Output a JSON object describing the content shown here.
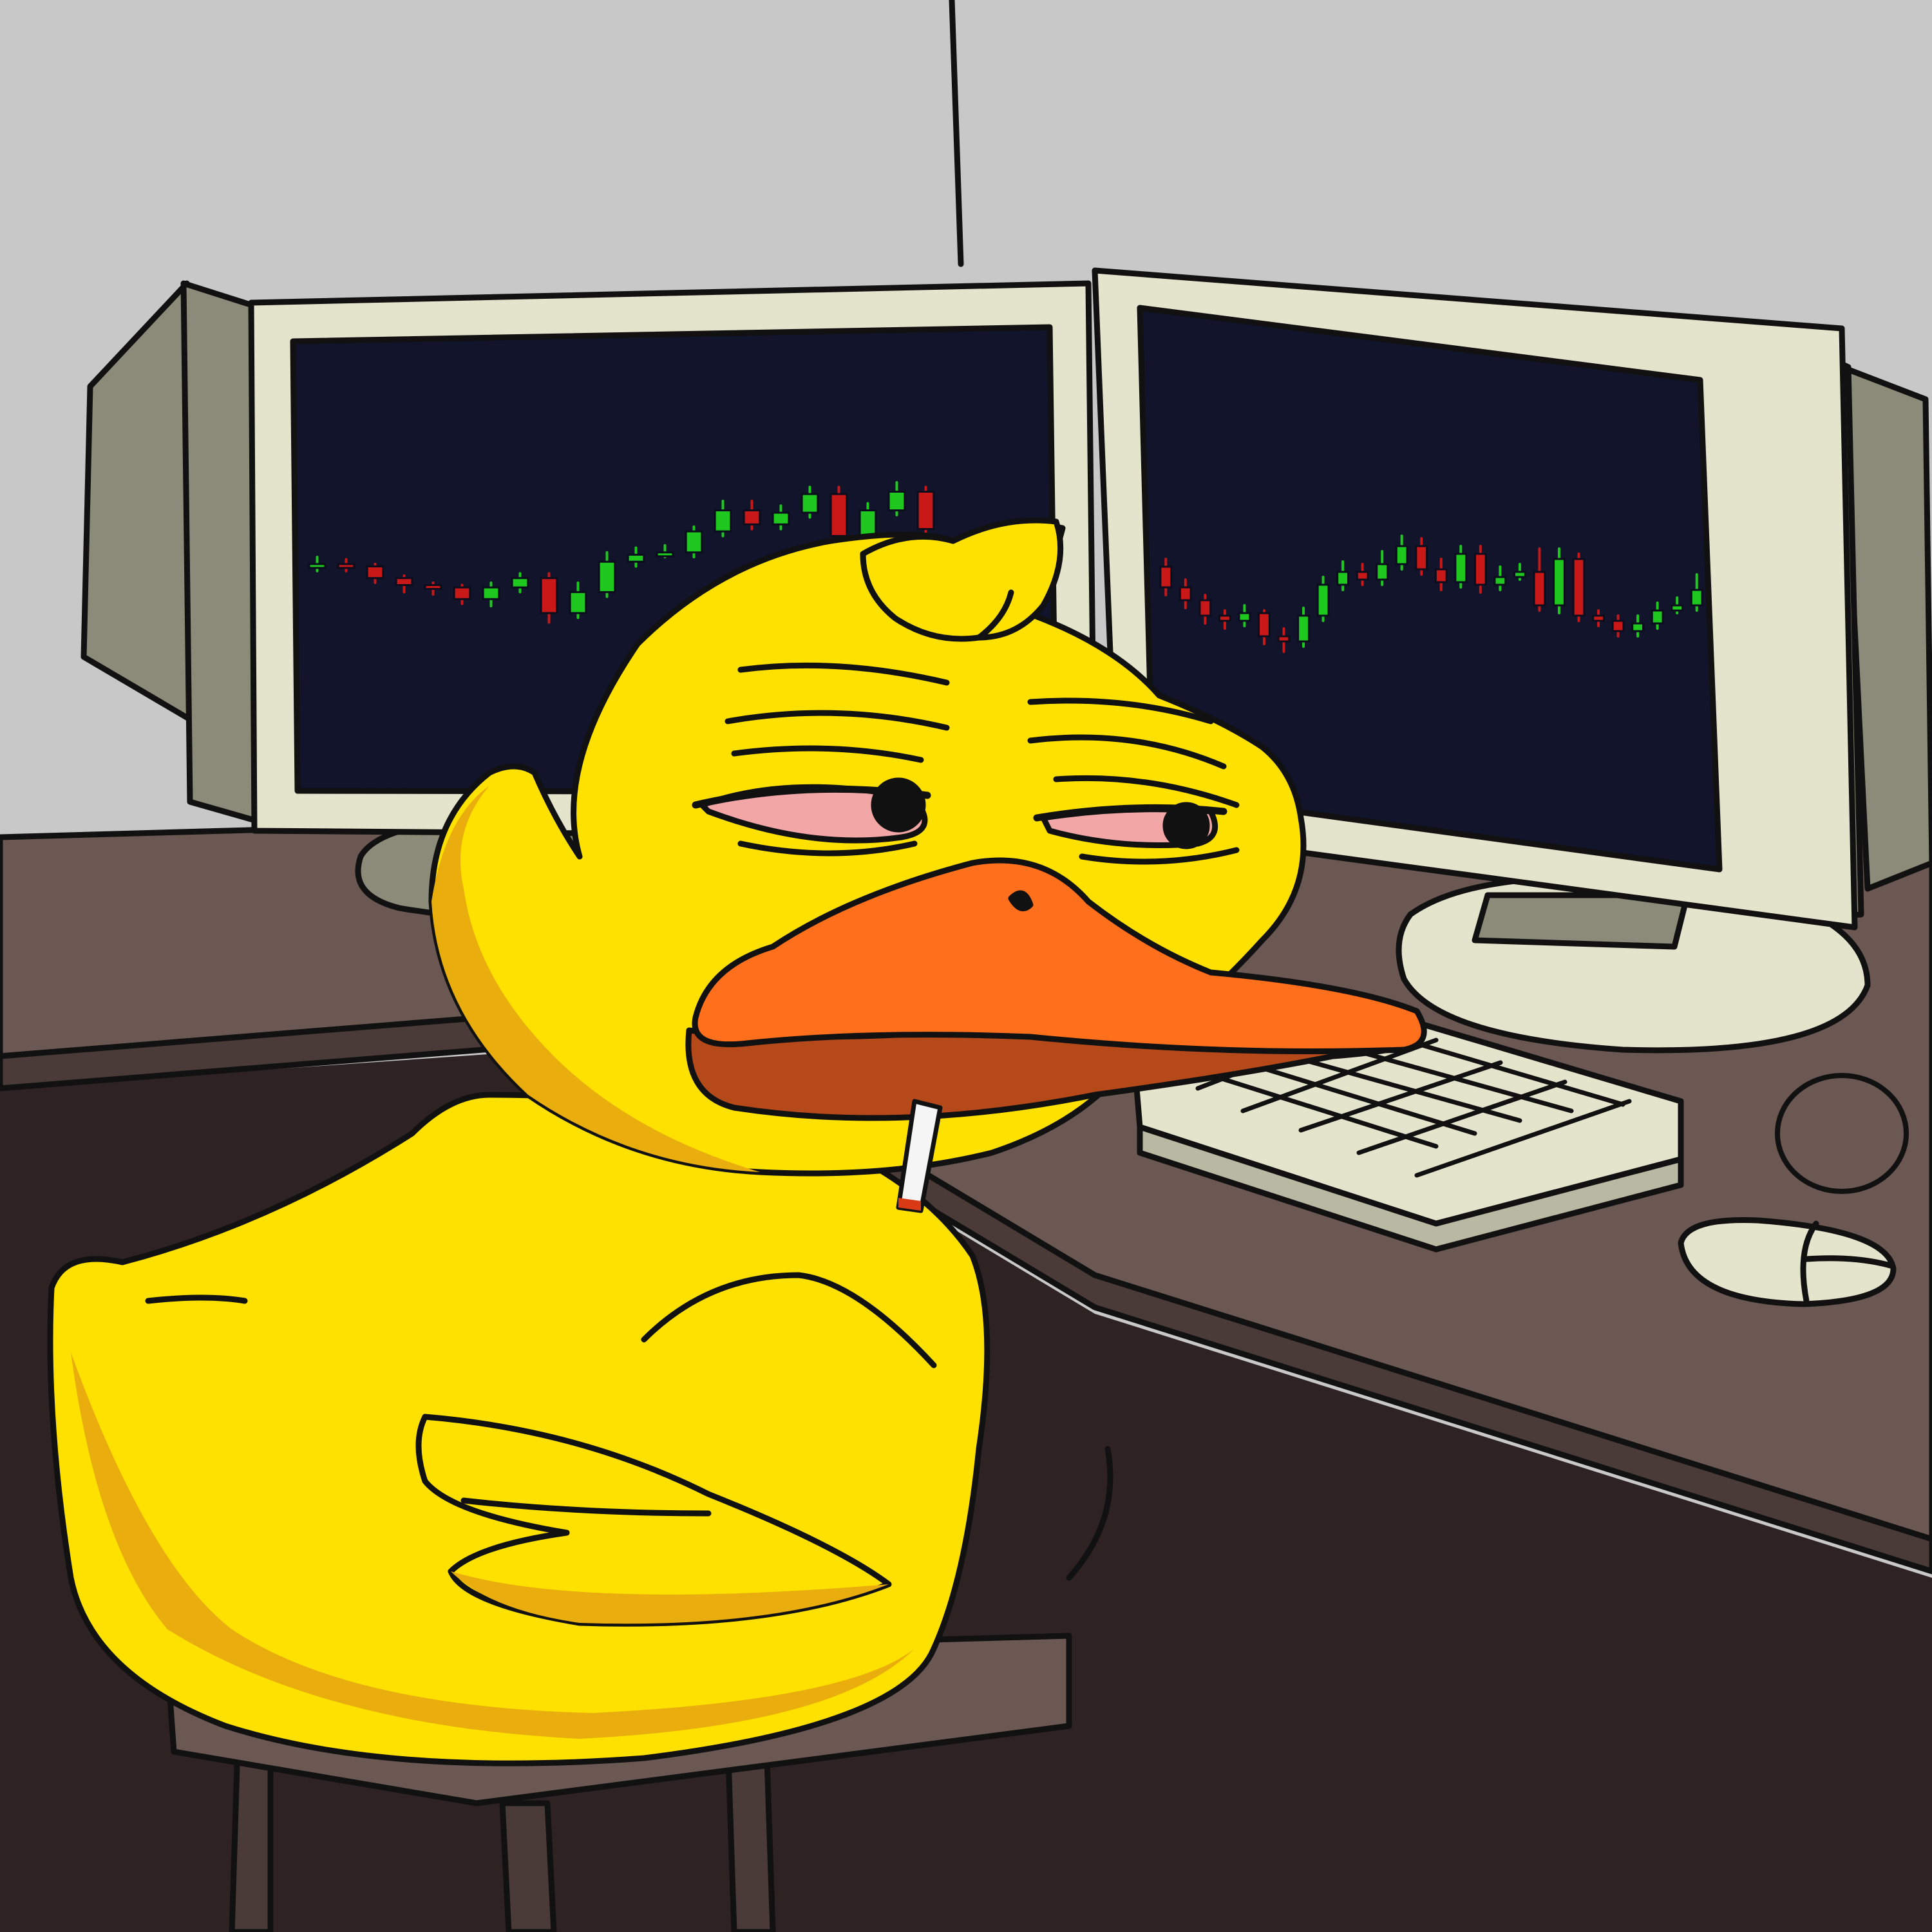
{
  "scene": {
    "subject": "duck-trader",
    "colors": {
      "wall": "#c8c8c8",
      "floor": "#7c8c54",
      "floor_light": "#9aab6e",
      "desk_top": "#6b5853",
      "desk_front": "#2e2322",
      "desk_edge": "#4a3b38",
      "monitor_frame": "#e4e3cb",
      "monitor_side": "#8a8b78",
      "screen": "#11142a",
      "candle_up": "#1ec81e",
      "candle_down": "#c81818",
      "duck_body": "#ffe100",
      "duck_shade": "#e9ad0e",
      "beak": "#ff6f1c",
      "beak_shade": "#b5491a",
      "eye_red": "#f2a6a6",
      "keyboard": "#e4e3cb",
      "stool": "#6b5853",
      "outline": "#111111"
    },
    "charts": [
      {
        "screen": "left",
        "candles": [
          {
            "o": 36,
            "c": 37,
            "h": 40,
            "l": 34
          },
          {
            "o": 37,
            "c": 36,
            "h": 39,
            "l": 34
          },
          {
            "o": 36,
            "c": 31,
            "h": 37,
            "l": 29
          },
          {
            "o": 31,
            "c": 28,
            "h": 32,
            "l": 25
          },
          {
            "o": 28,
            "c": 27,
            "h": 29,
            "l": 24
          },
          {
            "o": 27,
            "c": 22,
            "h": 28,
            "l": 20
          },
          {
            "o": 22,
            "c": 27,
            "h": 29,
            "l": 19
          },
          {
            "o": 27,
            "c": 31,
            "h": 33,
            "l": 25
          },
          {
            "o": 31,
            "c": 16,
            "h": 33,
            "l": 12
          },
          {
            "o": 16,
            "c": 25,
            "h": 29,
            "l": 14
          },
          {
            "o": 25,
            "c": 38,
            "h": 42,
            "l": 23
          },
          {
            "o": 38,
            "c": 41,
            "h": 44,
            "l": 36
          },
          {
            "o": 41,
            "c": 42,
            "h": 45,
            "l": 40
          },
          {
            "o": 42,
            "c": 51,
            "h": 53,
            "l": 40
          },
          {
            "o": 51,
            "c": 60,
            "h": 64,
            "l": 49
          },
          {
            "o": 60,
            "c": 54,
            "h": 64,
            "l": 52
          },
          {
            "o": 54,
            "c": 59,
            "h": 62,
            "l": 52
          },
          {
            "o": 59,
            "c": 67,
            "h": 70,
            "l": 57
          },
          {
            "o": 67,
            "c": 49,
            "h": 70,
            "l": 46
          },
          {
            "o": 49,
            "c": 60,
            "h": 63,
            "l": 47
          },
          {
            "o": 60,
            "c": 68,
            "h": 72,
            "l": 58
          },
          {
            "o": 68,
            "c": 52,
            "h": 70,
            "l": 50
          }
        ]
      },
      {
        "screen": "right",
        "candles": [
          {
            "o": 55,
            "c": 47,
            "h": 58,
            "l": 44
          },
          {
            "o": 47,
            "c": 42,
            "h": 50,
            "l": 39
          },
          {
            "o": 42,
            "c": 36,
            "h": 44,
            "l": 33
          },
          {
            "o": 36,
            "c": 34,
            "h": 38,
            "l": 31
          },
          {
            "o": 34,
            "c": 37,
            "h": 40,
            "l": 32
          },
          {
            "o": 37,
            "c": 28,
            "h": 38,
            "l": 25
          },
          {
            "o": 28,
            "c": 26,
            "h": 31,
            "l": 22
          },
          {
            "o": 26,
            "c": 36,
            "h": 39,
            "l": 24
          },
          {
            "o": 36,
            "c": 48,
            "h": 51,
            "l": 34
          },
          {
            "o": 48,
            "c": 53,
            "h": 57,
            "l": 46
          },
          {
            "o": 53,
            "c": 50,
            "h": 56,
            "l": 48
          },
          {
            "o": 50,
            "c": 56,
            "h": 61,
            "l": 48
          },
          {
            "o": 56,
            "c": 63,
            "h": 67,
            "l": 54
          },
          {
            "o": 63,
            "c": 54,
            "h": 66,
            "l": 52
          },
          {
            "o": 54,
            "c": 49,
            "h": 58,
            "l": 46
          },
          {
            "o": 49,
            "c": 60,
            "h": 63,
            "l": 47
          },
          {
            "o": 60,
            "c": 48,
            "h": 63,
            "l": 45
          },
          {
            "o": 48,
            "c": 51,
            "h": 55,
            "l": 46
          },
          {
            "o": 51,
            "c": 53,
            "h": 56,
            "l": 50
          },
          {
            "o": 53,
            "c": 40,
            "h": 62,
            "l": 38
          },
          {
            "o": 40,
            "c": 58,
            "h": 62,
            "l": 37
          },
          {
            "o": 58,
            "c": 36,
            "h": 60,
            "l": 34
          },
          {
            "o": 36,
            "c": 34,
            "h": 38,
            "l": 32
          },
          {
            "o": 34,
            "c": 30,
            "h": 36,
            "l": 28
          },
          {
            "o": 30,
            "c": 33,
            "h": 36,
            "l": 28
          },
          {
            "o": 33,
            "c": 38,
            "h": 41,
            "l": 31
          },
          {
            "o": 38,
            "c": 40,
            "h": 43,
            "l": 37
          },
          {
            "o": 40,
            "c": 46,
            "h": 52,
            "l": 38
          }
        ]
      }
    ]
  }
}
